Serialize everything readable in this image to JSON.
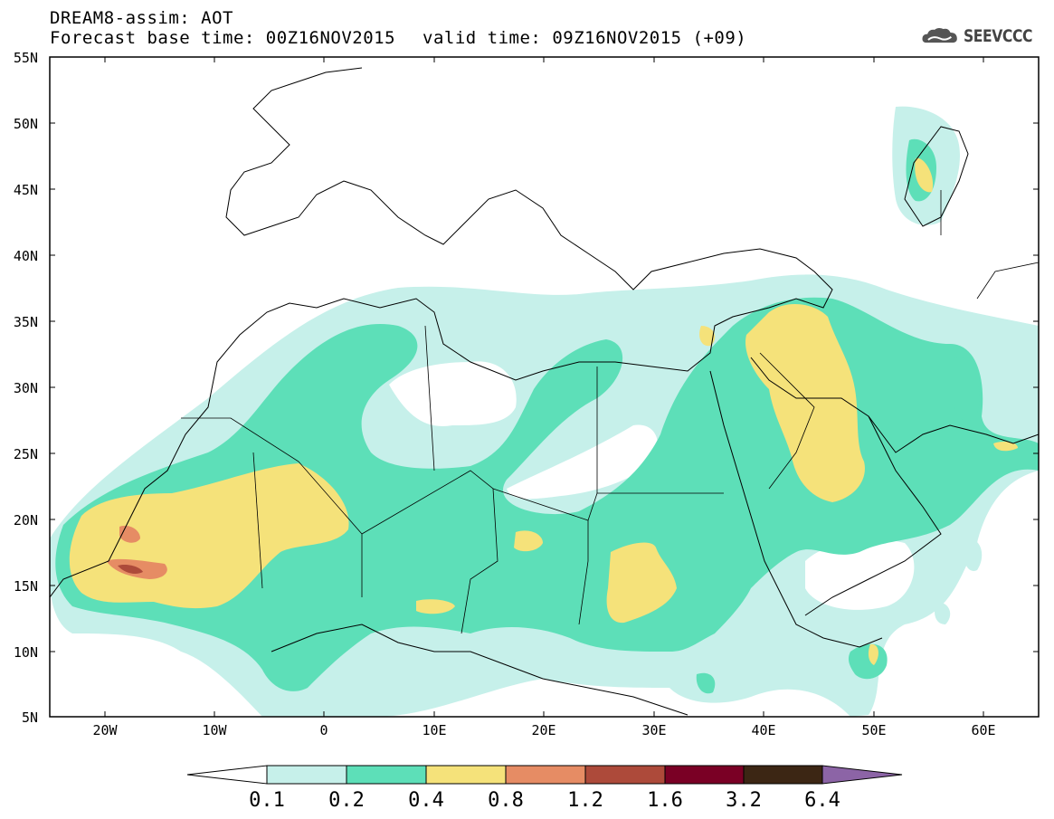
{
  "header": {
    "title_line1": "DREAM8-assim: AOT",
    "base_time": "Forecast base time: 00Z16NOV2015",
    "valid_time": "valid time: 09Z16NOV2015 (+09)"
  },
  "logo": {
    "icon": "cloud-icon",
    "text": "SEEVCCC"
  },
  "map": {
    "lon_range": [
      -25,
      65
    ],
    "lat_range": [
      5,
      55
    ],
    "lat_labels": [
      "55N",
      "50N",
      "45N",
      "40N",
      "35N",
      "30N",
      "25N",
      "20N",
      "15N",
      "10N",
      "5N"
    ],
    "lon_labels": [
      "20W",
      "10W",
      "0",
      "10E",
      "20E",
      "30E",
      "40E",
      "50E",
      "60E"
    ]
  },
  "legend": {
    "thresholds": [
      "0.1",
      "0.2",
      "0.4",
      "0.8",
      "1.2",
      "1.6",
      "3.2",
      "6.4"
    ],
    "colors": [
      "#ffffff",
      "#c6f0ea",
      "#5ddfb8",
      "#f5e27a",
      "#e68c64",
      "#ad4a3a",
      "#7a0025",
      "#3c2614",
      "#8c64a6"
    ]
  },
  "colors": {
    "aot_01": "#c6f0ea",
    "aot_02": "#5ddfb8",
    "aot_04": "#f5e27a",
    "aot_08": "#e68c64",
    "aot_12": "#ad4a3a"
  }
}
